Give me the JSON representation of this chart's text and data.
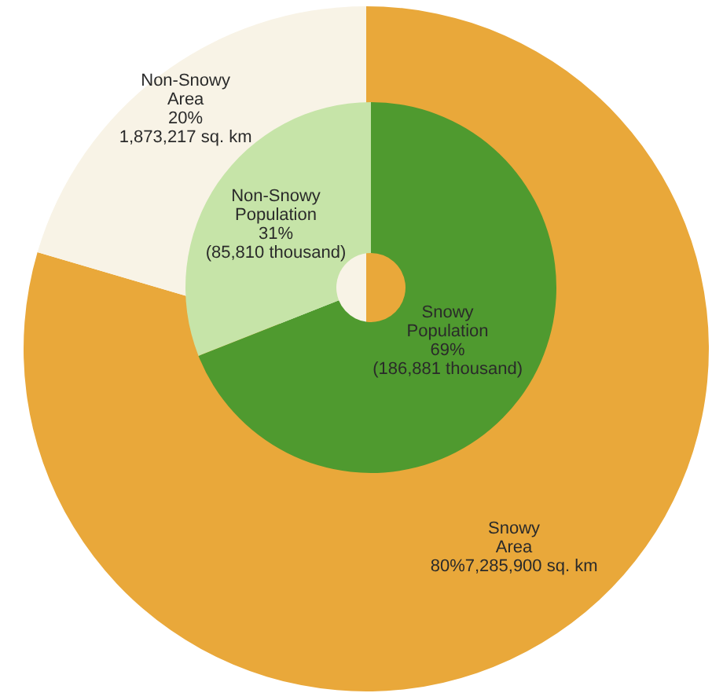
{
  "chart_data": [
    {
      "type": "pie",
      "categories": [
        "Snowy Area",
        "Non-Snowy Area"
      ],
      "values": [
        7285900,
        1873217
      ],
      "colors": [
        "#e9a83a",
        "#f8f3e6"
      ],
      "value_labels": [
        "80%7,285,900 sq. km",
        "20%\n1,873,217 sq. km"
      ]
    },
    {
      "type": "donut",
      "categories": [
        "Snowy Population",
        "Non-Snowy Population"
      ],
      "values": [
        69,
        31
      ],
      "colors": [
        "#4f9a2f",
        "#c6e4a8"
      ],
      "value_labels": [
        "69%\n(186,881 thousand)",
        "31%\n(85,810 thousand)"
      ]
    }
  ]
}
